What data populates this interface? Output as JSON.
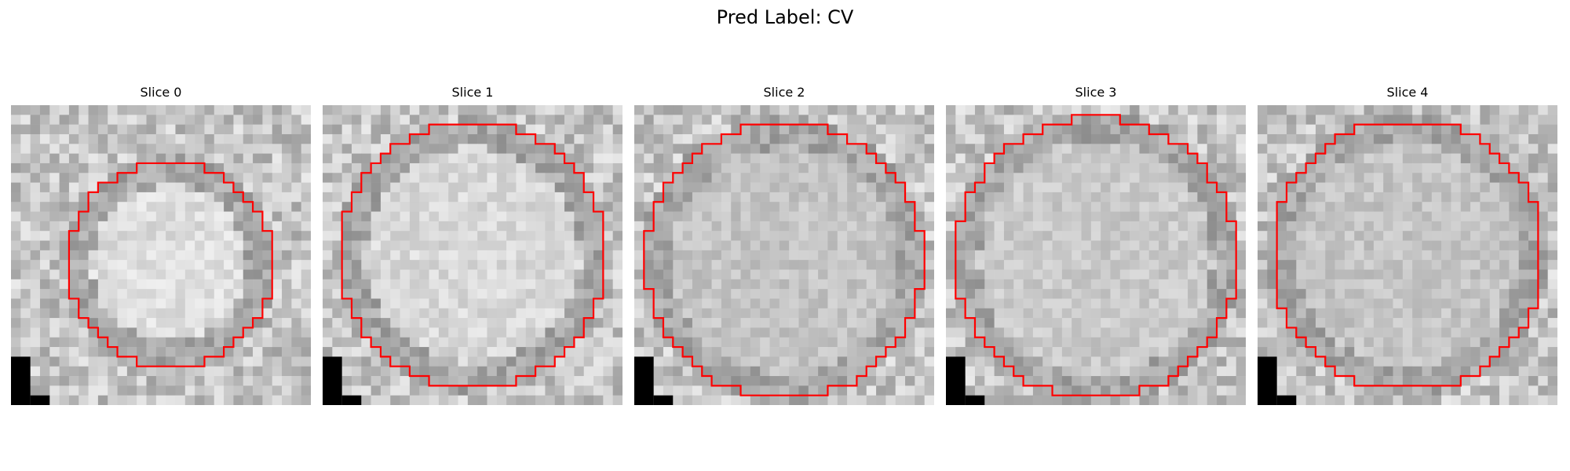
{
  "figure": {
    "suptitle": "Pred Label: CV",
    "contour_color": "#ff0000",
    "colormap": "gray",
    "grid_size": 31,
    "slices": [
      {
        "title": "Slice 0",
        "seed": 11,
        "center": [
          0.53,
          0.53
        ],
        "radius": 0.34,
        "vessel_brightness": 0.9
      },
      {
        "title": "Slice 1",
        "seed": 23,
        "center": [
          0.5,
          0.5
        ],
        "radius": 0.44,
        "vessel_brightness": 0.88
      },
      {
        "title": "Slice 2",
        "seed": 37,
        "center": [
          0.5,
          0.52
        ],
        "radius": 0.46,
        "vessel_brightness": 0.8
      },
      {
        "title": "Slice 3",
        "seed": 41,
        "center": [
          0.5,
          0.51
        ],
        "radius": 0.47,
        "vessel_brightness": 0.82
      },
      {
        "title": "Slice 4",
        "seed": 53,
        "center": [
          0.5,
          0.5
        ],
        "radius": 0.45,
        "vessel_brightness": 0.8
      }
    ]
  }
}
